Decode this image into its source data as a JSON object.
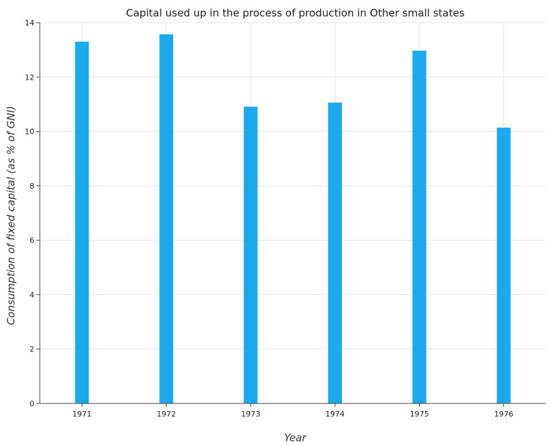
{
  "chart_data": {
    "type": "bar",
    "title": "Capital used up in the process of production in Other small states",
    "xlabel": "Year",
    "ylabel": "Consumption of fixed capital (as % of GNI)",
    "categories": [
      "1971",
      "1972",
      "1973",
      "1974",
      "1975",
      "1976"
    ],
    "values": [
      13.3,
      13.57,
      10.91,
      11.06,
      12.97,
      10.14
    ],
    "ylim": [
      0,
      14
    ],
    "yticks": [
      "0",
      "2",
      "4",
      "6",
      "8",
      "10",
      "12",
      "14"
    ],
    "grid": true,
    "bar_color": "#1ba9ee"
  }
}
